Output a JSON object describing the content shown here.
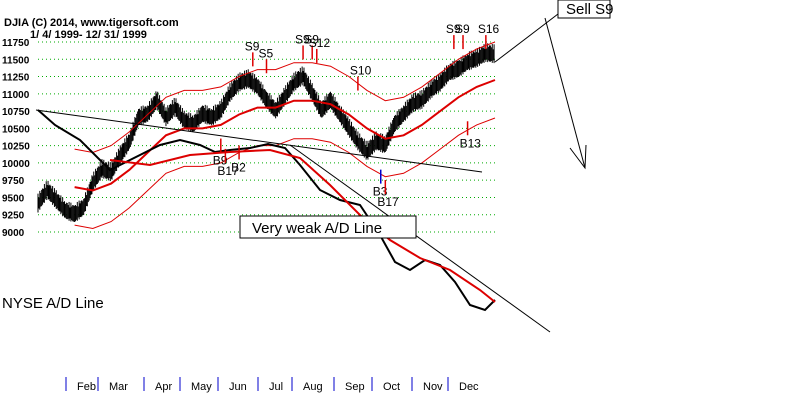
{
  "chart_data": {
    "type": "line",
    "header": {
      "line1": "DJIA   (C) 2014, www.tigersoft.com",
      "line2": "1/ 4/ 1999- 12/ 31/ 1999"
    },
    "y_ticks": [
      9000,
      9250,
      9500,
      9750,
      10000,
      10250,
      10500,
      10750,
      11000,
      11250,
      11500,
      11750
    ],
    "ylim": [
      9000,
      11750
    ],
    "grid": true,
    "months": [
      "Feb",
      "Mar",
      "Apr",
      "May",
      "Jun",
      "Jul",
      "Aug",
      "Sep",
      "Oct",
      "Nov",
      "Dec"
    ],
    "series": [
      {
        "color": "#000000",
        "style": "bars",
        "points": [
          [
            0.0,
            9400
          ],
          [
            0.02,
            9600
          ],
          [
            0.04,
            9450
          ],
          [
            0.06,
            9300
          ],
          [
            0.08,
            9250
          ],
          [
            0.1,
            9350
          ],
          [
            0.12,
            9700
          ],
          [
            0.14,
            9900
          ],
          [
            0.16,
            9850
          ],
          [
            0.18,
            10100
          ],
          [
            0.2,
            10300
          ],
          [
            0.22,
            10650
          ],
          [
            0.24,
            10700
          ],
          [
            0.26,
            10900
          ],
          [
            0.28,
            10650
          ],
          [
            0.3,
            10800
          ],
          [
            0.32,
            10600
          ],
          [
            0.34,
            10550
          ],
          [
            0.36,
            10700
          ],
          [
            0.38,
            10650
          ],
          [
            0.4,
            10750
          ],
          [
            0.42,
            11000
          ],
          [
            0.44,
            11150
          ],
          [
            0.46,
            11200
          ],
          [
            0.48,
            11100
          ],
          [
            0.5,
            10900
          ],
          [
            0.52,
            10750
          ],
          [
            0.54,
            10950
          ],
          [
            0.56,
            11150
          ],
          [
            0.58,
            11250
          ],
          [
            0.6,
            11000
          ],
          [
            0.62,
            10750
          ],
          [
            0.64,
            10900
          ],
          [
            0.66,
            10700
          ],
          [
            0.68,
            10500
          ],
          [
            0.7,
            10300
          ],
          [
            0.72,
            10150
          ],
          [
            0.74,
            10300
          ],
          [
            0.76,
            10250
          ],
          [
            0.78,
            10550
          ],
          [
            0.8,
            10700
          ],
          [
            0.82,
            10850
          ],
          [
            0.84,
            10900
          ],
          [
            0.86,
            11050
          ],
          [
            0.88,
            11150
          ],
          [
            0.9,
            11300
          ],
          [
            0.92,
            11350
          ],
          [
            0.94,
            11450
          ],
          [
            0.96,
            11500
          ],
          [
            0.98,
            11580
          ],
          [
            1.0,
            11560
          ]
        ]
      },
      {
        "color": "#dd0000",
        "style": "line",
        "points": [
          [
            0.08,
            9650
          ],
          [
            0.12,
            9600
          ],
          [
            0.16,
            9700
          ],
          [
            0.2,
            9900
          ],
          [
            0.24,
            10150
          ],
          [
            0.28,
            10400
          ],
          [
            0.32,
            10500
          ],
          [
            0.36,
            10500
          ],
          [
            0.4,
            10550
          ],
          [
            0.44,
            10700
          ],
          [
            0.48,
            10800
          ],
          [
            0.52,
            10800
          ],
          [
            0.56,
            10900
          ],
          [
            0.6,
            10900
          ],
          [
            0.64,
            10850
          ],
          [
            0.68,
            10700
          ],
          [
            0.72,
            10500
          ],
          [
            0.76,
            10350
          ],
          [
            0.8,
            10400
          ],
          [
            0.84,
            10550
          ],
          [
            0.88,
            10750
          ],
          [
            0.92,
            10950
          ],
          [
            0.96,
            11100
          ],
          [
            1.0,
            11200
          ]
        ]
      }
    ],
    "annotations": [
      {
        "label": "S9",
        "x": 0.47,
        "y": 11600,
        "dir": "down"
      },
      {
        "label": "S5",
        "x": 0.5,
        "y": 11500,
        "dir": "down"
      },
      {
        "label": "S9",
        "x": 0.58,
        "y": 11700,
        "dir": "down"
      },
      {
        "label": "S9",
        "x": 0.6,
        "y": 11700,
        "dir": "down"
      },
      {
        "label": "S12",
        "x": 0.61,
        "y": 11650,
        "dir": "down"
      },
      {
        "label": "S10",
        "x": 0.7,
        "y": 11250,
        "dir": "down"
      },
      {
        "label": "S9",
        "x": 0.91,
        "y": 11850,
        "dir": "down"
      },
      {
        "label": "S9",
        "x": 0.93,
        "y": 11850,
        "dir": "down"
      },
      {
        "label": "S16",
        "x": 0.98,
        "y": 11850,
        "dir": "down"
      },
      {
        "label": "B9",
        "x": 0.4,
        "y": 10150,
        "dir": "up"
      },
      {
        "label": "B17",
        "x": 0.41,
        "y": 10000,
        "dir": "up"
      },
      {
        "label": "B2",
        "x": 0.44,
        "y": 10050,
        "dir": "up"
      },
      {
        "label": "B13",
        "x": 0.94,
        "y": 10400,
        "dir": "up"
      },
      {
        "label": "B3",
        "x": 0.75,
        "y": 9700,
        "dir": "up"
      },
      {
        "label": "B17",
        "x": 0.76,
        "y": 9550,
        "dir": "up"
      }
    ],
    "sell_label": "Sell S9",
    "ad_label": "NYSE A/D Line",
    "ad_note": "Very weak A/D Line"
  }
}
